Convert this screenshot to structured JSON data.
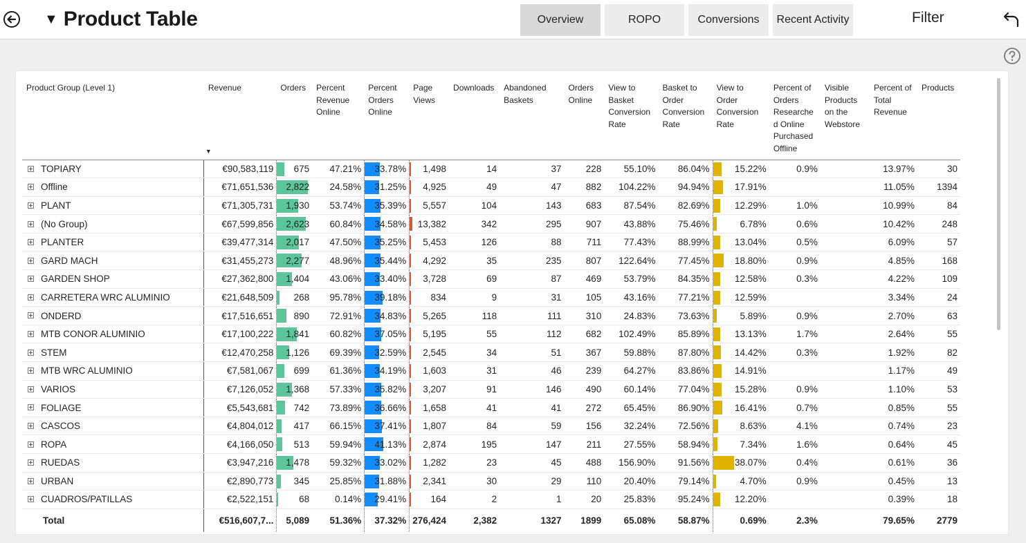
{
  "header": {
    "title": "Product Table",
    "title_caret": "▼",
    "tabs": [
      {
        "label": "Overview",
        "active": true
      },
      {
        "label": "ROPO",
        "active": false
      },
      {
        "label": "Conversions",
        "active": false
      },
      {
        "label": "Recent Activity",
        "active": false
      }
    ],
    "filter_label": "Filter"
  },
  "icons": {
    "back": "back-arrow-circle-icon",
    "undo": "undo-arrow-icon",
    "help": "help-circle-icon",
    "expand": "expand-plus-icon"
  },
  "colors": {
    "orders_bar": "#5bc69a",
    "orders_online_bar": "#118dff",
    "page_views_bar": "#e3542f",
    "conversion_bar": "#dfb300"
  },
  "table": {
    "columns": [
      "Product Group (Level 1)",
      "Revenue",
      "Orders",
      "Percent Revenue Online",
      "Percent Orders Online",
      "Page Views",
      "Downloads",
      "Abandoned Baskets",
      "Orders Online",
      "View to Basket Conversion Rate",
      "Basket to Order Conversion Rate",
      "View to Order Conversion Rate",
      "Percent of Orders Researche d Online Purchased Offline",
      "Visible Products on the Webstore",
      "Percent of Total Revenue",
      "Products"
    ],
    "rows": [
      {
        "group": "TOPIARY",
        "revenue": "€90,583,119",
        "orders": "675",
        "pct_rev_online": "47.21%",
        "pct_orders_online": "33.78%",
        "page_views": "1,498",
        "downloads": "14",
        "abandoned": "37",
        "orders_online": "228",
        "v2b": "55.10%",
        "b2o": "86.04%",
        "v2o": "15.22%",
        "pct_researched": "0.9%",
        "visible": "",
        "pct_total_rev": "13.97%",
        "products": "30"
      },
      {
        "group": "Offline",
        "revenue": "€71,651,536",
        "orders": "2,822",
        "pct_rev_online": "24.58%",
        "pct_orders_online": "31.25%",
        "page_views": "4,925",
        "downloads": "49",
        "abandoned": "47",
        "orders_online": "882",
        "v2b": "104.22%",
        "b2o": "94.94%",
        "v2o": "17.91%",
        "pct_researched": "",
        "visible": "",
        "pct_total_rev": "11.05%",
        "products": "1394"
      },
      {
        "group": "PLANT",
        "revenue": "€71,305,731",
        "orders": "1,930",
        "pct_rev_online": "53.74%",
        "pct_orders_online": "35.39%",
        "page_views": "5,557",
        "downloads": "104",
        "abandoned": "143",
        "orders_online": "683",
        "v2b": "87.54%",
        "b2o": "82.69%",
        "v2o": "12.29%",
        "pct_researched": "1.0%",
        "visible": "",
        "pct_total_rev": "10.99%",
        "products": "84"
      },
      {
        "group": "(No Group)",
        "revenue": "€67,599,856",
        "orders": "2,623",
        "pct_rev_online": "60.84%",
        "pct_orders_online": "34.58%",
        "page_views": "13,382",
        "downloads": "342",
        "abandoned": "295",
        "orders_online": "907",
        "v2b": "43.88%",
        "b2o": "75.46%",
        "v2o": "6.78%",
        "pct_researched": "0.6%",
        "visible": "",
        "pct_total_rev": "10.42%",
        "products": "248"
      },
      {
        "group": "PLANTER",
        "revenue": "€39,477,314",
        "orders": "2,017",
        "pct_rev_online": "47.50%",
        "pct_orders_online": "35.25%",
        "page_views": "5,453",
        "downloads": "126",
        "abandoned": "88",
        "orders_online": "711",
        "v2b": "77.43%",
        "b2o": "88.99%",
        "v2o": "13.04%",
        "pct_researched": "0.5%",
        "visible": "",
        "pct_total_rev": "6.09%",
        "products": "57"
      },
      {
        "group": "GARD MACH",
        "revenue": "€31,455,273",
        "orders": "2,277",
        "pct_rev_online": "48.96%",
        "pct_orders_online": "35.44%",
        "page_views": "4,292",
        "downloads": "35",
        "abandoned": "235",
        "orders_online": "807",
        "v2b": "122.64%",
        "b2o": "77.45%",
        "v2o": "18.80%",
        "pct_researched": "0.9%",
        "visible": "",
        "pct_total_rev": "4.85%",
        "products": "168"
      },
      {
        "group": "GARDEN SHOP",
        "revenue": "€27,362,800",
        "orders": "1,404",
        "pct_rev_online": "43.06%",
        "pct_orders_online": "33.40%",
        "page_views": "3,728",
        "downloads": "69",
        "abandoned": "87",
        "orders_online": "469",
        "v2b": "53.79%",
        "b2o": "84.35%",
        "v2o": "12.58%",
        "pct_researched": "0.3%",
        "visible": "",
        "pct_total_rev": "4.22%",
        "products": "109"
      },
      {
        "group": "CARRETERA WRC ALUMINIO",
        "revenue": "€21,648,509",
        "orders": "268",
        "pct_rev_online": "95.78%",
        "pct_orders_online": "39.18%",
        "page_views": "834",
        "downloads": "9",
        "abandoned": "31",
        "orders_online": "105",
        "v2b": "43.16%",
        "b2o": "77.21%",
        "v2o": "12.59%",
        "pct_researched": "",
        "visible": "",
        "pct_total_rev": "3.34%",
        "products": "24"
      },
      {
        "group": "ONDERD",
        "revenue": "€17,516,651",
        "orders": "890",
        "pct_rev_online": "72.91%",
        "pct_orders_online": "34.83%",
        "page_views": "5,265",
        "downloads": "118",
        "abandoned": "111",
        "orders_online": "310",
        "v2b": "24.83%",
        "b2o": "73.63%",
        "v2o": "5.89%",
        "pct_researched": "0.9%",
        "visible": "",
        "pct_total_rev": "2.70%",
        "products": "63"
      },
      {
        "group": "MTB CONOR ALUMINIO",
        "revenue": "€17,100,222",
        "orders": "1,841",
        "pct_rev_online": "60.82%",
        "pct_orders_online": "37.05%",
        "page_views": "5,195",
        "downloads": "55",
        "abandoned": "112",
        "orders_online": "682",
        "v2b": "102.49%",
        "b2o": "85.89%",
        "v2o": "13.13%",
        "pct_researched": "1.7%",
        "visible": "",
        "pct_total_rev": "2.64%",
        "products": "55"
      },
      {
        "group": "STEM",
        "revenue": "€12,470,258",
        "orders": "1,126",
        "pct_rev_online": "69.39%",
        "pct_orders_online": "32.59%",
        "page_views": "2,545",
        "downloads": "34",
        "abandoned": "51",
        "orders_online": "367",
        "v2b": "59.88%",
        "b2o": "87.80%",
        "v2o": "14.42%",
        "pct_researched": "0.3%",
        "visible": "",
        "pct_total_rev": "1.92%",
        "products": "82"
      },
      {
        "group": "MTB WRC ALUMINIO",
        "revenue": "€7,581,067",
        "orders": "699",
        "pct_rev_online": "61.36%",
        "pct_orders_online": "34.19%",
        "page_views": "1,603",
        "downloads": "31",
        "abandoned": "46",
        "orders_online": "239",
        "v2b": "64.27%",
        "b2o": "83.86%",
        "v2o": "14.91%",
        "pct_researched": "",
        "visible": "",
        "pct_total_rev": "1.17%",
        "products": "49"
      },
      {
        "group": "VARIOS",
        "revenue": "€7,126,052",
        "orders": "1,368",
        "pct_rev_online": "57.33%",
        "pct_orders_online": "35.82%",
        "page_views": "3,207",
        "downloads": "91",
        "abandoned": "146",
        "orders_online": "490",
        "v2b": "60.14%",
        "b2o": "77.04%",
        "v2o": "15.28%",
        "pct_researched": "0.9%",
        "visible": "",
        "pct_total_rev": "1.10%",
        "products": "53"
      },
      {
        "group": "FOLIAGE",
        "revenue": "€5,543,681",
        "orders": "742",
        "pct_rev_online": "73.89%",
        "pct_orders_online": "36.66%",
        "page_views": "1,658",
        "downloads": "41",
        "abandoned": "41",
        "orders_online": "272",
        "v2b": "65.45%",
        "b2o": "86.90%",
        "v2o": "16.41%",
        "pct_researched": "0.7%",
        "visible": "",
        "pct_total_rev": "0.85%",
        "products": "55"
      },
      {
        "group": "CASCOS",
        "revenue": "€4,804,012",
        "orders": "417",
        "pct_rev_online": "66.15%",
        "pct_orders_online": "37.41%",
        "page_views": "1,807",
        "downloads": "84",
        "abandoned": "59",
        "orders_online": "156",
        "v2b": "32.24%",
        "b2o": "72.56%",
        "v2o": "8.63%",
        "pct_researched": "4.1%",
        "visible": "",
        "pct_total_rev": "0.74%",
        "products": "23"
      },
      {
        "group": "ROPA",
        "revenue": "€4,166,050",
        "orders": "513",
        "pct_rev_online": "59.94%",
        "pct_orders_online": "41.13%",
        "page_views": "2,874",
        "downloads": "195",
        "abandoned": "147",
        "orders_online": "211",
        "v2b": "27.55%",
        "b2o": "58.94%",
        "v2o": "7.34%",
        "pct_researched": "1.6%",
        "visible": "",
        "pct_total_rev": "0.64%",
        "products": "45"
      },
      {
        "group": "RUEDAS",
        "revenue": "€3,947,216",
        "orders": "1,478",
        "pct_rev_online": "59.32%",
        "pct_orders_online": "33.02%",
        "page_views": "1,282",
        "downloads": "23",
        "abandoned": "45",
        "orders_online": "488",
        "v2b": "156.90%",
        "b2o": "91.56%",
        "v2o": "38.07%",
        "pct_researched": "0.4%",
        "visible": "",
        "pct_total_rev": "0.61%",
        "products": "36"
      },
      {
        "group": "URBAN",
        "revenue": "€2,890,773",
        "orders": "345",
        "pct_rev_online": "25.85%",
        "pct_orders_online": "31.88%",
        "page_views": "2,341",
        "downloads": "30",
        "abandoned": "29",
        "orders_online": "110",
        "v2b": "20.40%",
        "b2o": "79.14%",
        "v2o": "4.70%",
        "pct_researched": "0.9%",
        "visible": "",
        "pct_total_rev": "0.45%",
        "products": "13"
      },
      {
        "group": "CUADROS/PATILLAS",
        "revenue": "€2,522,151",
        "orders": "68",
        "pct_rev_online": "0.14%",
        "pct_orders_online": "29.41%",
        "page_views": "164",
        "downloads": "2",
        "abandoned": "1",
        "orders_online": "20",
        "v2b": "25.83%",
        "b2o": "95.24%",
        "v2o": "12.20%",
        "pct_researched": "",
        "visible": "",
        "pct_total_rev": "0.39%",
        "products": "18"
      }
    ],
    "total": {
      "group": "Total",
      "revenue": "€516,607,7...",
      "orders": "5,089",
      "pct_rev_online": "51.36%",
      "pct_orders_online": "37.32%",
      "page_views": "276,424",
      "downloads": "2,382",
      "abandoned": "1327",
      "orders_online": "1899",
      "v2b": "65.08%",
      "b2o": "58.87%",
      "v2o": "0.69%",
      "pct_researched": "2.3%",
      "visible": "",
      "pct_total_rev": "79.65%",
      "products": "2779"
    }
  }
}
